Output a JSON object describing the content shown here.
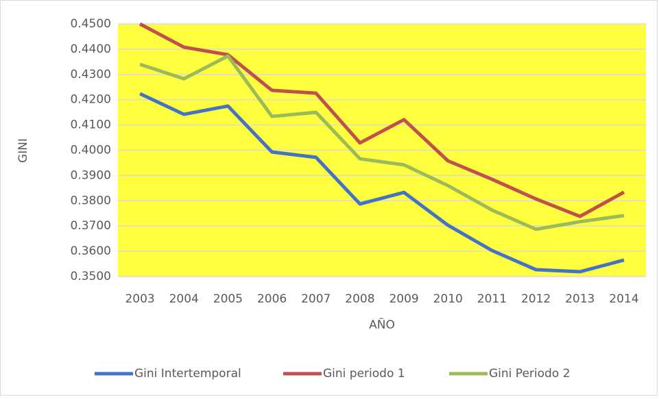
{
  "chart_data": {
    "type": "line",
    "y_label": "GINI",
    "x_label": "AÑO",
    "categories": [
      "2003",
      "2004",
      "2005",
      "2006",
      "2007",
      "2008",
      "2009",
      "2010",
      "2011",
      "2012",
      "2013",
      "2014"
    ],
    "series": [
      {
        "name": "Gini Intertemporal",
        "color": "#4472c4",
        "values": [
          0.4224,
          0.4142,
          0.4175,
          0.3993,
          0.3972,
          0.3787,
          0.3833,
          0.3703,
          0.3603,
          0.3527,
          0.3519,
          0.3565
        ]
      },
      {
        "name": "Gini periodo 1",
        "color": "#c0504d",
        "values": [
          0.45,
          0.4408,
          0.4378,
          0.4237,
          0.4226,
          0.4029,
          0.4121,
          0.3958,
          0.3885,
          0.3807,
          0.3738,
          0.3834
        ]
      },
      {
        "name": "Gini Periodo 2",
        "color": "#9bbb59",
        "values": [
          0.434,
          0.4283,
          0.4373,
          0.4134,
          0.415,
          0.3966,
          0.3942,
          0.386,
          0.3763,
          0.3687,
          0.3717,
          0.3741
        ]
      }
    ],
    "ylim": [
      0.35,
      0.45
    ],
    "yticks": [
      {
        "value": 0.35,
        "label": "0.3500"
      },
      {
        "value": 0.36,
        "label": "0.3600"
      },
      {
        "value": 0.37,
        "label": "0.3700"
      },
      {
        "value": 0.38,
        "label": "0.3800"
      },
      {
        "value": 0.39,
        "label": "0.3900"
      },
      {
        "value": 0.4,
        "label": "0.4000"
      },
      {
        "value": 0.41,
        "label": "0.4100"
      },
      {
        "value": 0.42,
        "label": "0.4200"
      },
      {
        "value": 0.43,
        "label": "0.4300"
      },
      {
        "value": 0.44,
        "label": "0.4400"
      },
      {
        "value": 0.45,
        "label": "0.4500"
      }
    ],
    "grid": true,
    "plot_background": "#ffff40",
    "legend_position": "bottom"
  }
}
